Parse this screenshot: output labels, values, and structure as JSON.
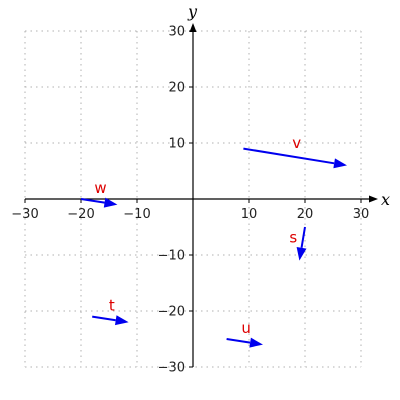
{
  "chart_data": {
    "type": "scatter",
    "subtype": "vector-field",
    "xlabel": "x",
    "ylabel": "y",
    "xlim": [
      -30,
      30
    ],
    "ylim": [
      -30,
      30
    ],
    "xticks": [
      -30,
      -20,
      -10,
      10,
      20,
      30
    ],
    "yticks": [
      -30,
      -20,
      -10,
      10,
      20,
      30
    ],
    "grid": true,
    "vector_color": "#0000ee",
    "label_color": "#dd0000",
    "vectors": [
      {
        "name": "v",
        "x0": 9,
        "y0": 9,
        "x1": 27.5,
        "y1": 6
      },
      {
        "name": "w",
        "x0": -20,
        "y0": 0,
        "x1": -13.5,
        "y1": -1
      },
      {
        "name": "s",
        "x0": 20,
        "y0": -5,
        "x1": 19,
        "y1": -11
      },
      {
        "name": "t",
        "x0": -18,
        "y0": -21,
        "x1": -11.5,
        "y1": -22
      },
      {
        "name": "u",
        "x0": 6,
        "y0": -25,
        "x1": 12.5,
        "y1": -26
      }
    ]
  }
}
